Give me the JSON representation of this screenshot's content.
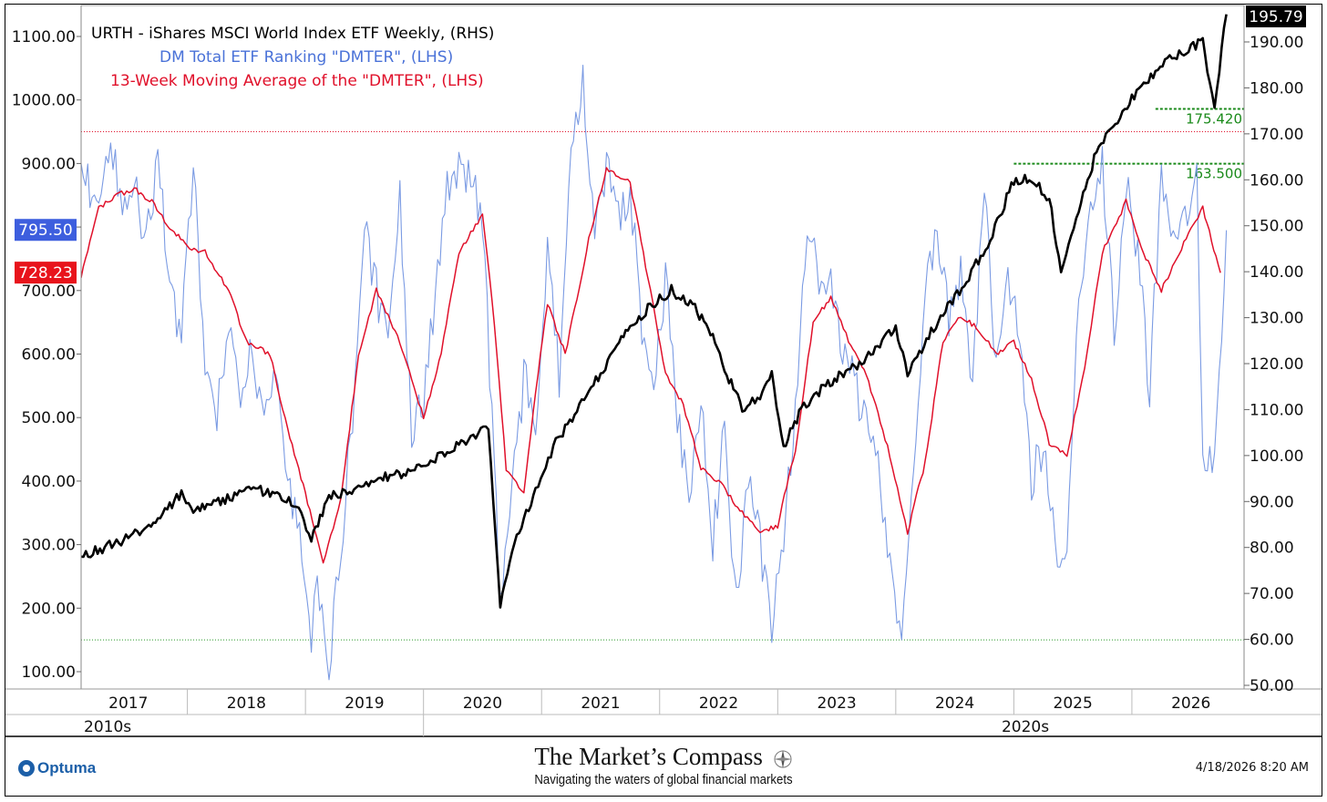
{
  "chart_data": {
    "type": "line",
    "legend": [
      {
        "label": "URTH - iShares MSCI World Index ETF Weekly, (RHS)",
        "color": "#000000"
      },
      {
        "label": "DM Total ETF Ranking \"DMTER\", (LHS)",
        "color": "#4a72d8"
      },
      {
        "label": "13-Week Moving Average of the \"DMTER\", (LHS)",
        "color": "#e0102a"
      }
    ],
    "left_axis": {
      "range": [
        70,
        1130
      ],
      "ticks": [
        "1100.00",
        "1000.00",
        "900.00",
        "800.00",
        "700.00",
        "600.00",
        "500.00",
        "400.00",
        "300.00",
        "200.00",
        "100.00"
      ],
      "tick_values": [
        1100,
        1000,
        900,
        800,
        700,
        600,
        500,
        400,
        300,
        200,
        100
      ]
    },
    "right_axis": {
      "range": [
        49,
        197
      ],
      "ticks": [
        "190.00",
        "180.00",
        "170.00",
        "160.00",
        "150.00",
        "140.00",
        "130.00",
        "120.00",
        "110.00",
        "100.00",
        "90.00",
        "80.00",
        "70.00",
        "60.00",
        "50.00"
      ],
      "tick_values": [
        190,
        180,
        170,
        160,
        150,
        140,
        130,
        120,
        110,
        100,
        90,
        80,
        70,
        60,
        50
      ]
    },
    "x_axis": {
      "start": 2016.6,
      "end": 2026.45,
      "year_labels": [
        "2017",
        "2018",
        "2019",
        "2020",
        "2021",
        "2022",
        "2023",
        "2024",
        "2025",
        "2026"
      ],
      "year_values": [
        2017,
        2018,
        2019,
        2020,
        2021,
        2022,
        2023,
        2024,
        2025,
        2026
      ],
      "decade_labels": [
        "2010s",
        "2020s"
      ]
    },
    "value_labels": [
      {
        "label": "795.50",
        "value": 795.5,
        "axis": "left",
        "color": "#3d5ede"
      },
      {
        "label": "728.23",
        "value": 728.23,
        "axis": "left",
        "color": "#e8131b"
      },
      {
        "label": "195.79",
        "value": 195.79,
        "axis": "right",
        "color": "#000000"
      }
    ],
    "reference_lines": [
      {
        "axis": "left",
        "value": 950,
        "color": "#e0102a",
        "style": "dotted"
      },
      {
        "axis": "left",
        "value": 150,
        "color": "#2a9a2a",
        "style": "dotted"
      },
      {
        "axis": "right",
        "value": 175.42,
        "color": "#1a8a1a",
        "style": "dashed",
        "label": "175.420",
        "x_start": 2025.7
      },
      {
        "axis": "right",
        "value": 163.5,
        "color": "#1a8a1a",
        "style": "dashed",
        "label": "163.500",
        "x_start": 2024.5
      }
    ],
    "urth_key_points": [
      [
        2016.6,
        78
      ],
      [
        2016.8,
        80
      ],
      [
        2017.0,
        82
      ],
      [
        2017.25,
        86
      ],
      [
        2017.45,
        92
      ],
      [
        2017.55,
        88
      ],
      [
        2017.8,
        90
      ],
      [
        2018.0,
        93
      ],
      [
        2018.2,
        92
      ],
      [
        2018.4,
        90
      ],
      [
        2018.55,
        82
      ],
      [
        2018.7,
        91
      ],
      [
        2018.95,
        93
      ],
      [
        2019.1,
        95
      ],
      [
        2019.35,
        96
      ],
      [
        2019.5,
        98
      ],
      [
        2019.7,
        101
      ],
      [
        2019.9,
        104
      ],
      [
        2020.05,
        106
      ],
      [
        2020.15,
        68
      ],
      [
        2020.25,
        80
      ],
      [
        2020.45,
        92
      ],
      [
        2020.6,
        102
      ],
      [
        2020.9,
        114
      ],
      [
        2021.1,
        122
      ],
      [
        2021.25,
        128
      ],
      [
        2021.4,
        132
      ],
      [
        2021.6,
        136
      ],
      [
        2021.8,
        132
      ],
      [
        2021.95,
        126
      ],
      [
        2022.05,
        119
      ],
      [
        2022.2,
        110
      ],
      [
        2022.35,
        113
      ],
      [
        2022.45,
        118
      ],
      [
        2022.55,
        102
      ],
      [
        2022.7,
        110
      ],
      [
        2022.85,
        114
      ],
      [
        2023.0,
        117
      ],
      [
        2023.25,
        121
      ],
      [
        2023.5,
        128
      ],
      [
        2023.6,
        118
      ],
      [
        2023.8,
        127
      ],
      [
        2024.1,
        138
      ],
      [
        2024.3,
        147
      ],
      [
        2024.5,
        160
      ],
      [
        2024.65,
        160
      ],
      [
        2024.8,
        156
      ],
      [
        2024.9,
        140
      ],
      [
        2025.05,
        154
      ],
      [
        2025.2,
        166
      ],
      [
        2025.5,
        178
      ],
      [
        2025.8,
        186
      ],
      [
        2026.1,
        190
      ],
      [
        2026.2,
        176
      ],
      [
        2026.3,
        196
      ]
    ],
    "dmter_ma_key_points": [
      [
        2016.6,
        720
      ],
      [
        2016.75,
        830
      ],
      [
        2016.9,
        850
      ],
      [
        2017.05,
        860
      ],
      [
        2017.2,
        840
      ],
      [
        2017.35,
        800
      ],
      [
        2017.5,
        770
      ],
      [
        2017.65,
        760
      ],
      [
        2017.85,
        700
      ],
      [
        2018.0,
        620
      ],
      [
        2018.2,
        600
      ],
      [
        2018.35,
        480
      ],
      [
        2018.5,
        380
      ],
      [
        2018.65,
        270
      ],
      [
        2018.8,
        370
      ],
      [
        2018.95,
        600
      ],
      [
        2019.1,
        700
      ],
      [
        2019.3,
        620
      ],
      [
        2019.5,
        500
      ],
      [
        2019.65,
        600
      ],
      [
        2019.8,
        760
      ],
      [
        2020.0,
        820
      ],
      [
        2020.1,
        650
      ],
      [
        2020.2,
        420
      ],
      [
        2020.35,
        380
      ],
      [
        2020.45,
        540
      ],
      [
        2020.55,
        680
      ],
      [
        2020.7,
        600
      ],
      [
        2020.9,
        780
      ],
      [
        2021.05,
        890
      ],
      [
        2021.25,
        870
      ],
      [
        2021.4,
        720
      ],
      [
        2021.55,
        570
      ],
      [
        2021.7,
        520
      ],
      [
        2021.85,
        420
      ],
      [
        2022.0,
        400
      ],
      [
        2022.2,
        350
      ],
      [
        2022.35,
        320
      ],
      [
        2022.5,
        330
      ],
      [
        2022.65,
        450
      ],
      [
        2022.8,
        650
      ],
      [
        2022.95,
        690
      ],
      [
        2023.1,
        620
      ],
      [
        2023.25,
        570
      ],
      [
        2023.45,
        440
      ],
      [
        2023.6,
        320
      ],
      [
        2023.75,
        430
      ],
      [
        2023.9,
        620
      ],
      [
        2024.05,
        660
      ],
      [
        2024.2,
        640
      ],
      [
        2024.35,
        600
      ],
      [
        2024.5,
        620
      ],
      [
        2024.65,
        560
      ],
      [
        2024.8,
        460
      ],
      [
        2024.95,
        440
      ],
      [
        2025.1,
        580
      ],
      [
        2025.25,
        760
      ],
      [
        2025.45,
        840
      ],
      [
        2025.6,
        760
      ],
      [
        2025.75,
        700
      ],
      [
        2025.9,
        760
      ],
      [
        2026.1,
        830
      ],
      [
        2026.25,
        728
      ]
    ],
    "dmter_key_points": [
      [
        2016.6,
        900
      ],
      [
        2016.75,
        820
      ],
      [
        2016.85,
        950
      ],
      [
        2016.95,
        820
      ],
      [
        2017.05,
        860
      ],
      [
        2017.15,
        780
      ],
      [
        2017.25,
        900
      ],
      [
        2017.35,
        720
      ],
      [
        2017.45,
        620
      ],
      [
        2017.55,
        900
      ],
      [
        2017.65,
        600
      ],
      [
        2017.75,
        500
      ],
      [
        2017.85,
        650
      ],
      [
        2017.95,
        540
      ],
      [
        2018.05,
        620
      ],
      [
        2018.15,
        480
      ],
      [
        2018.25,
        560
      ],
      [
        2018.35,
        420
      ],
      [
        2018.45,
        300
      ],
      [
        2018.55,
        150
      ],
      [
        2018.6,
        220
      ],
      [
        2018.7,
        100
      ],
      [
        2018.8,
        300
      ],
      [
        2018.9,
        500
      ],
      [
        2019.0,
        800
      ],
      [
        2019.1,
        700
      ],
      [
        2019.2,
        620
      ],
      [
        2019.3,
        840
      ],
      [
        2019.4,
        480
      ],
      [
        2019.5,
        520
      ],
      [
        2019.6,
        700
      ],
      [
        2019.7,
        860
      ],
      [
        2019.8,
        900
      ],
      [
        2019.9,
        880
      ],
      [
        2020.0,
        820
      ],
      [
        2020.1,
        420
      ],
      [
        2020.15,
        200
      ],
      [
        2020.25,
        380
      ],
      [
        2020.35,
        560
      ],
      [
        2020.45,
        500
      ],
      [
        2020.55,
        760
      ],
      [
        2020.65,
        560
      ],
      [
        2020.75,
        920
      ],
      [
        2020.85,
        1020
      ],
      [
        2020.95,
        780
      ],
      [
        2021.05,
        900
      ],
      [
        2021.15,
        820
      ],
      [
        2021.25,
        860
      ],
      [
        2021.35,
        640
      ],
      [
        2021.45,
        540
      ],
      [
        2021.55,
        720
      ],
      [
        2021.65,
        500
      ],
      [
        2021.75,
        380
      ],
      [
        2021.85,
        520
      ],
      [
        2021.95,
        300
      ],
      [
        2022.05,
        480
      ],
      [
        2022.15,
        200
      ],
      [
        2022.25,
        400
      ],
      [
        2022.35,
        300
      ],
      [
        2022.45,
        160
      ],
      [
        2022.55,
        320
      ],
      [
        2022.65,
        500
      ],
      [
        2022.75,
        820
      ],
      [
        2022.85,
        700
      ],
      [
        2022.95,
        720
      ],
      [
        2023.05,
        600
      ],
      [
        2023.15,
        560
      ],
      [
        2023.25,
        480
      ],
      [
        2023.35,
        420
      ],
      [
        2023.45,
        280
      ],
      [
        2023.55,
        130
      ],
      [
        2023.65,
        420
      ],
      [
        2023.75,
        700
      ],
      [
        2023.85,
        800
      ],
      [
        2023.95,
        650
      ],
      [
        2024.05,
        720
      ],
      [
        2024.15,
        560
      ],
      [
        2024.25,
        860
      ],
      [
        2024.35,
        560
      ],
      [
        2024.45,
        720
      ],
      [
        2024.55,
        640
      ],
      [
        2024.65,
        400
      ],
      [
        2024.75,
        460
      ],
      [
        2024.85,
        300
      ],
      [
        2024.95,
        280
      ],
      [
        2025.05,
        700
      ],
      [
        2025.15,
        820
      ],
      [
        2025.25,
        900
      ],
      [
        2025.35,
        640
      ],
      [
        2025.45,
        880
      ],
      [
        2025.55,
        760
      ],
      [
        2025.65,
        540
      ],
      [
        2025.75,
        880
      ],
      [
        2025.85,
        760
      ],
      [
        2025.95,
        800
      ],
      [
        2026.05,
        890
      ],
      [
        2026.1,
        450
      ],
      [
        2026.2,
        420
      ],
      [
        2026.3,
        795
      ]
    ]
  },
  "footer": {
    "brand_title": "The Market’s Compass",
    "brand_subtitle": "Navigating the waters of global financial markets",
    "platform": "Optuma",
    "timestamp": "4/18/2026 8:20 AM"
  }
}
